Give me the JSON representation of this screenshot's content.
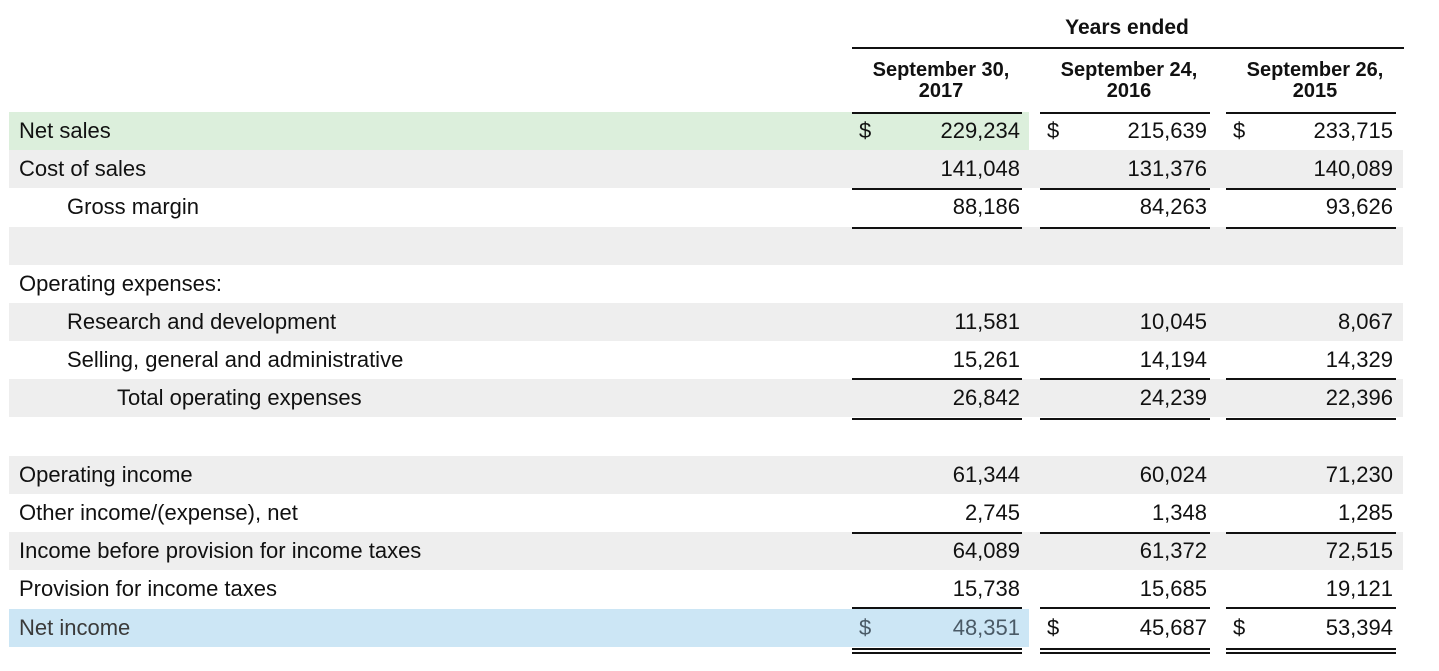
{
  "header": {
    "years_ended": "Years ended",
    "columns": [
      {
        "line1": "September 30,",
        "line2": "2017"
      },
      {
        "line1": "September 24,",
        "line2": "2016"
      },
      {
        "line1": "September 26,",
        "line2": "2015"
      }
    ]
  },
  "currency_symbol": "$",
  "colors": {
    "net_sales_highlight": "#dcefdc",
    "net_income_highlight": "#cce6f5",
    "row_stripe": "#eeeeee",
    "text": "#111111",
    "net_income_text": "#3a3a3a"
  },
  "rows": [
    {
      "label": "Net sales",
      "values": [
        "229,234",
        "215,639",
        "233,715"
      ]
    },
    {
      "label": "Cost of sales",
      "values": [
        "141,048",
        "131,376",
        "140,089"
      ]
    },
    {
      "label": "Gross margin",
      "values": [
        "88,186",
        "84,263",
        "93,626"
      ]
    },
    {
      "label": "",
      "values": [
        "",
        "",
        ""
      ]
    },
    {
      "label": "Operating expenses:",
      "values": [
        "",
        "",
        ""
      ]
    },
    {
      "label": "Research and development",
      "values": [
        "11,581",
        "10,045",
        "8,067"
      ]
    },
    {
      "label": "Selling, general and administrative",
      "values": [
        "15,261",
        "14,194",
        "14,329"
      ]
    },
    {
      "label": "Total operating expenses",
      "values": [
        "26,842",
        "24,239",
        "22,396"
      ]
    },
    {
      "label": "",
      "values": [
        "",
        "",
        ""
      ]
    },
    {
      "label": "Operating income",
      "values": [
        "61,344",
        "60,024",
        "71,230"
      ]
    },
    {
      "label": "Other income/(expense), net",
      "values": [
        "2,745",
        "1,348",
        "1,285"
      ]
    },
    {
      "label": "Income before provision for income taxes",
      "values": [
        "64,089",
        "61,372",
        "72,515"
      ]
    },
    {
      "label": "Provision for income taxes",
      "values": [
        "15,738",
        "15,685",
        "19,121"
      ]
    },
    {
      "label": "Net income",
      "values": [
        "48,351",
        "45,687",
        "53,394"
      ]
    }
  ]
}
